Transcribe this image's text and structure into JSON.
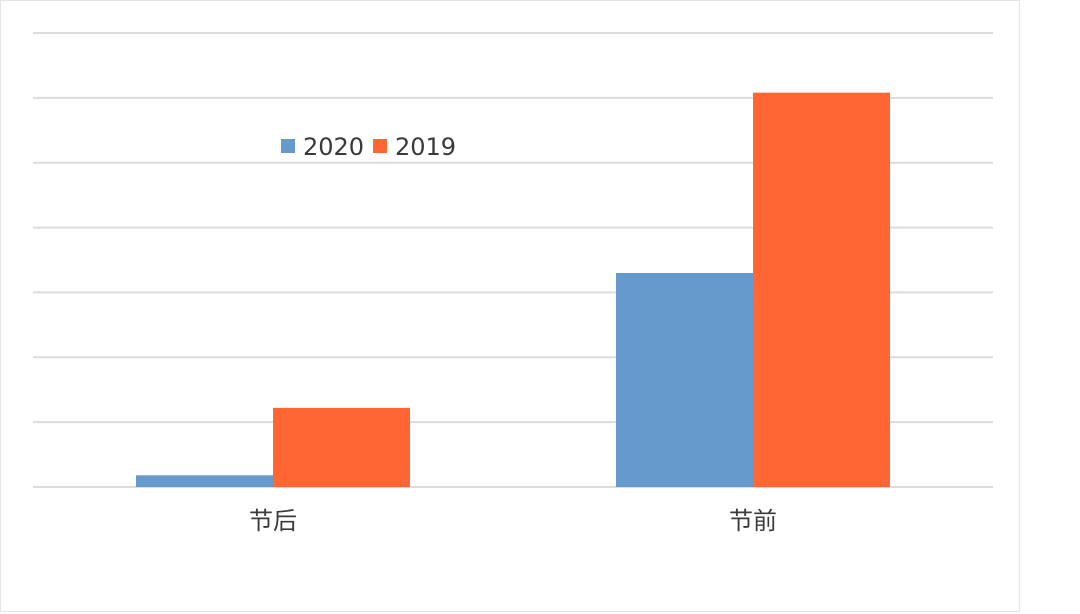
{
  "chart_data": {
    "type": "bar",
    "categories": [
      "节后",
      "节前"
    ],
    "series": [
      {
        "name": "2020",
        "color": "#6699cc",
        "values": [
          0.18,
          3.3
        ]
      },
      {
        "name": "2019",
        "color": "#ff6633",
        "values": [
          1.22,
          6.08
        ]
      }
    ],
    "ylim": [
      0,
      7
    ],
    "grid": true,
    "legend": "top-left"
  }
}
